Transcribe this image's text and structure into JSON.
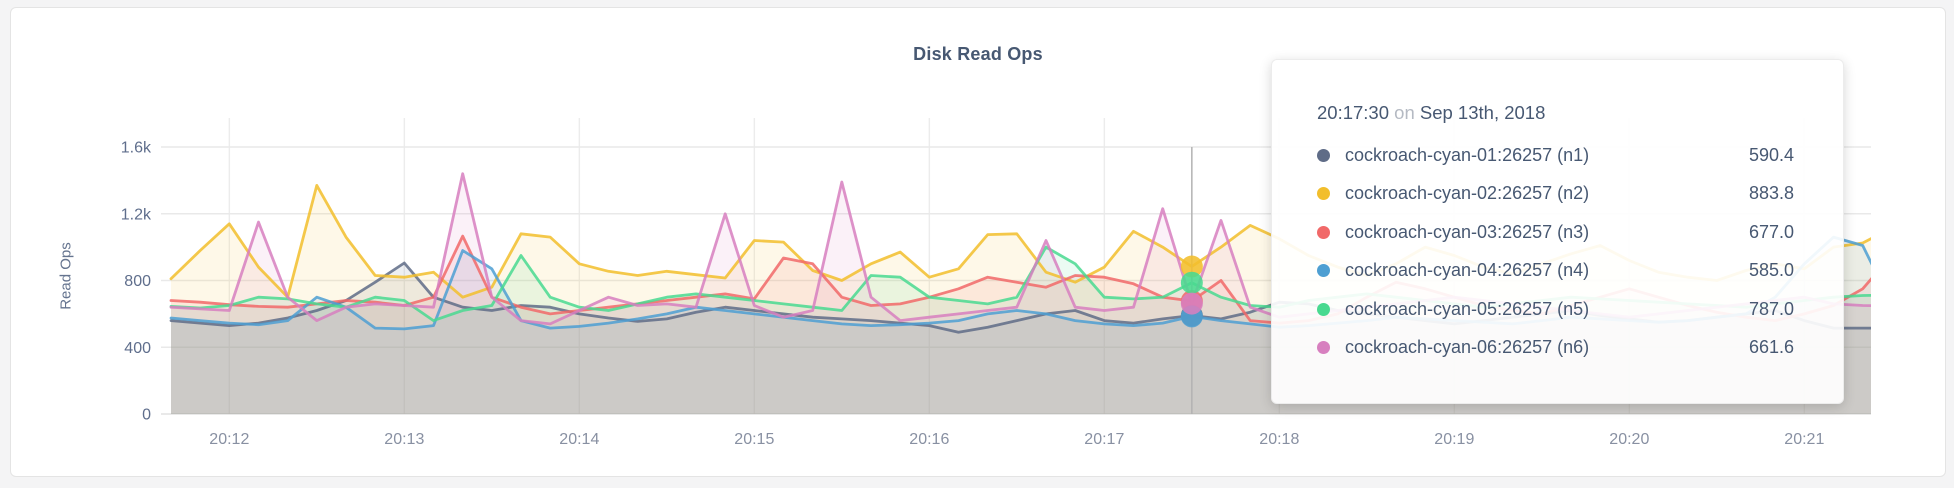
{
  "title": "Disk Read Ops",
  "y_axis": {
    "label": "Read Ops",
    "ticks": [
      {
        "label": "0",
        "value": 0
      },
      {
        "label": "400",
        "value": 400
      },
      {
        "label": "800",
        "value": 800
      },
      {
        "label": "1.2k",
        "value": 1200
      },
      {
        "label": "1.6k",
        "value": 1600
      }
    ]
  },
  "x_axis": {
    "ticks": [
      "20:12",
      "20:13",
      "20:14",
      "20:15",
      "20:16",
      "20:17",
      "20:18",
      "20:19",
      "20:20",
      "20:21"
    ]
  },
  "tooltip": {
    "time": "20:17:30",
    "on_word": "on",
    "date": "Sep 13th, 2018",
    "rows": [
      {
        "name": "cockroach-cyan-01:26257 (n1)",
        "value": "590.4"
      },
      {
        "name": "cockroach-cyan-02:26257 (n2)",
        "value": "883.8"
      },
      {
        "name": "cockroach-cyan-03:26257 (n3)",
        "value": "677.0"
      },
      {
        "name": "cockroach-cyan-04:26257 (n4)",
        "value": "585.0"
      },
      {
        "name": "cockroach-cyan-05:26257 (n5)",
        "value": "787.0"
      },
      {
        "name": "cockroach-cyan-06:26257 (n6)",
        "value": "661.6"
      }
    ]
  },
  "chart_data": {
    "type": "line",
    "title": "Disk Read Ops",
    "ylabel": "Read Ops",
    "ylim": [
      0,
      1600
    ],
    "grid": true,
    "x_start": "20:11:40",
    "x_interval_seconds": 10,
    "x_tick_labels": [
      "20:12",
      "20:13",
      "20:14",
      "20:15",
      "20:16",
      "20:17",
      "20:18",
      "20:19",
      "20:20",
      "20:21"
    ],
    "hover": {
      "index": 35,
      "time": "20:17:30",
      "date": "Sep 13th, 2018"
    },
    "series": [
      {
        "name": "cockroach-cyan-01:26257 (n1)",
        "short": "n1",
        "color": "#5F6C87",
        "values": [
          560,
          545,
          530,
          545,
          575,
          620,
          680,
          790,
          905,
          700,
          640,
          620,
          650,
          640,
          600,
          575,
          555,
          570,
          610,
          640,
          620,
          600,
          580,
          570,
          560,
          545,
          530,
          490,
          520,
          560,
          600,
          620,
          560,
          545,
          570,
          590.4,
          570,
          610,
          670,
          660,
          620,
          600,
          580,
          560,
          540,
          560,
          580,
          600,
          620,
          590,
          570,
          550,
          560,
          580,
          600,
          620,
          560,
          515,
          515,
          515
        ]
      },
      {
        "name": "cockroach-cyan-02:26257 (n2)",
        "short": "n2",
        "color": "#F2BE2C",
        "values": [
          810,
          980,
          1140,
          880,
          700,
          1370,
          1060,
          830,
          820,
          850,
          700,
          760,
          1080,
          1060,
          900,
          855,
          830,
          855,
          835,
          815,
          1040,
          1030,
          860,
          800,
          900,
          970,
          820,
          870,
          1075,
          1080,
          850,
          790,
          880,
          1095,
          1000,
          883.8,
          1000,
          1130,
          1050,
          950,
          880,
          830,
          900,
          1000,
          950,
          880,
          840,
          900,
          960,
          1010,
          920,
          850,
          820,
          800,
          860,
          900,
          870,
          1000,
          1025,
          1115
        ]
      },
      {
        "name": "cockroach-cyan-03:26257 (n3)",
        "short": "n3",
        "color": "#F16969",
        "values": [
          680,
          670,
          655,
          645,
          640,
          660,
          680,
          670,
          650,
          700,
          1066,
          700,
          640,
          600,
          620,
          640,
          660,
          680,
          700,
          720,
          690,
          935,
          900,
          700,
          650,
          660,
          700,
          750,
          820,
          790,
          760,
          830,
          820,
          780,
          700,
          677,
          800,
          560,
          545,
          560,
          600,
          700,
          790,
          750,
          700,
          650,
          620,
          600,
          650,
          700,
          750,
          700,
          650,
          610,
          580,
          560,
          600,
          650,
          750,
          950
        ]
      },
      {
        "name": "cockroach-cyan-04:26257 (n4)",
        "short": "n4",
        "color": "#4E9FD2",
        "values": [
          575,
          560,
          545,
          535,
          560,
          700,
          640,
          515,
          510,
          530,
          980,
          870,
          560,
          515,
          525,
          545,
          570,
          600,
          640,
          620,
          600,
          580,
          560,
          540,
          530,
          535,
          545,
          560,
          600,
          620,
          600,
          560,
          540,
          530,
          545,
          585,
          560,
          540,
          520,
          530,
          545,
          560,
          580,
          570,
          560,
          550,
          540,
          560,
          580,
          570,
          560,
          550,
          560,
          580,
          600,
          700,
          900,
          1060,
          1010,
          655
        ]
      },
      {
        "name": "cockroach-cyan-05:26257 (n5)",
        "short": "n5",
        "color": "#49D990",
        "values": [
          645,
          635,
          650,
          700,
          690,
          660,
          640,
          700,
          680,
          560,
          620,
          650,
          950,
          700,
          640,
          620,
          660,
          700,
          720,
          700,
          680,
          660,
          640,
          620,
          830,
          820,
          700,
          680,
          660,
          700,
          1000,
          900,
          700,
          690,
          700,
          787,
          700,
          650,
          640,
          680,
          700,
          720,
          700,
          680,
          660,
          640,
          660,
          680,
          700,
          690,
          680,
          670,
          660,
          650,
          640,
          660,
          680,
          700,
          710,
          713
        ]
      },
      {
        "name": "cockroach-cyan-06:26257 (n6)",
        "short": "n6",
        "color": "#D77FBF",
        "values": [
          640,
          630,
          620,
          1150,
          700,
          560,
          640,
          660,
          650,
          640,
          1440,
          700,
          560,
          540,
          620,
          700,
          650,
          660,
          640,
          1200,
          650,
          580,
          620,
          1390,
          700,
          560,
          580,
          600,
          620,
          640,
          1040,
          640,
          620,
          640,
          1230,
          661.6,
          1160,
          640,
          580,
          600,
          620,
          640,
          660,
          680,
          700,
          680,
          660,
          640,
          620,
          600,
          580,
          600,
          620,
          640,
          660,
          680,
          700,
          660,
          650,
          647
        ]
      }
    ]
  },
  "colors": {
    "title_text": "#475872",
    "x_tick_text": "#8890a2",
    "y_tick_text": "#5f6e8c",
    "grid_line": "#ececec",
    "crosshair": "#b3b3b3",
    "card_background": "#ffffff",
    "page_background": "#f4f4f5"
  }
}
